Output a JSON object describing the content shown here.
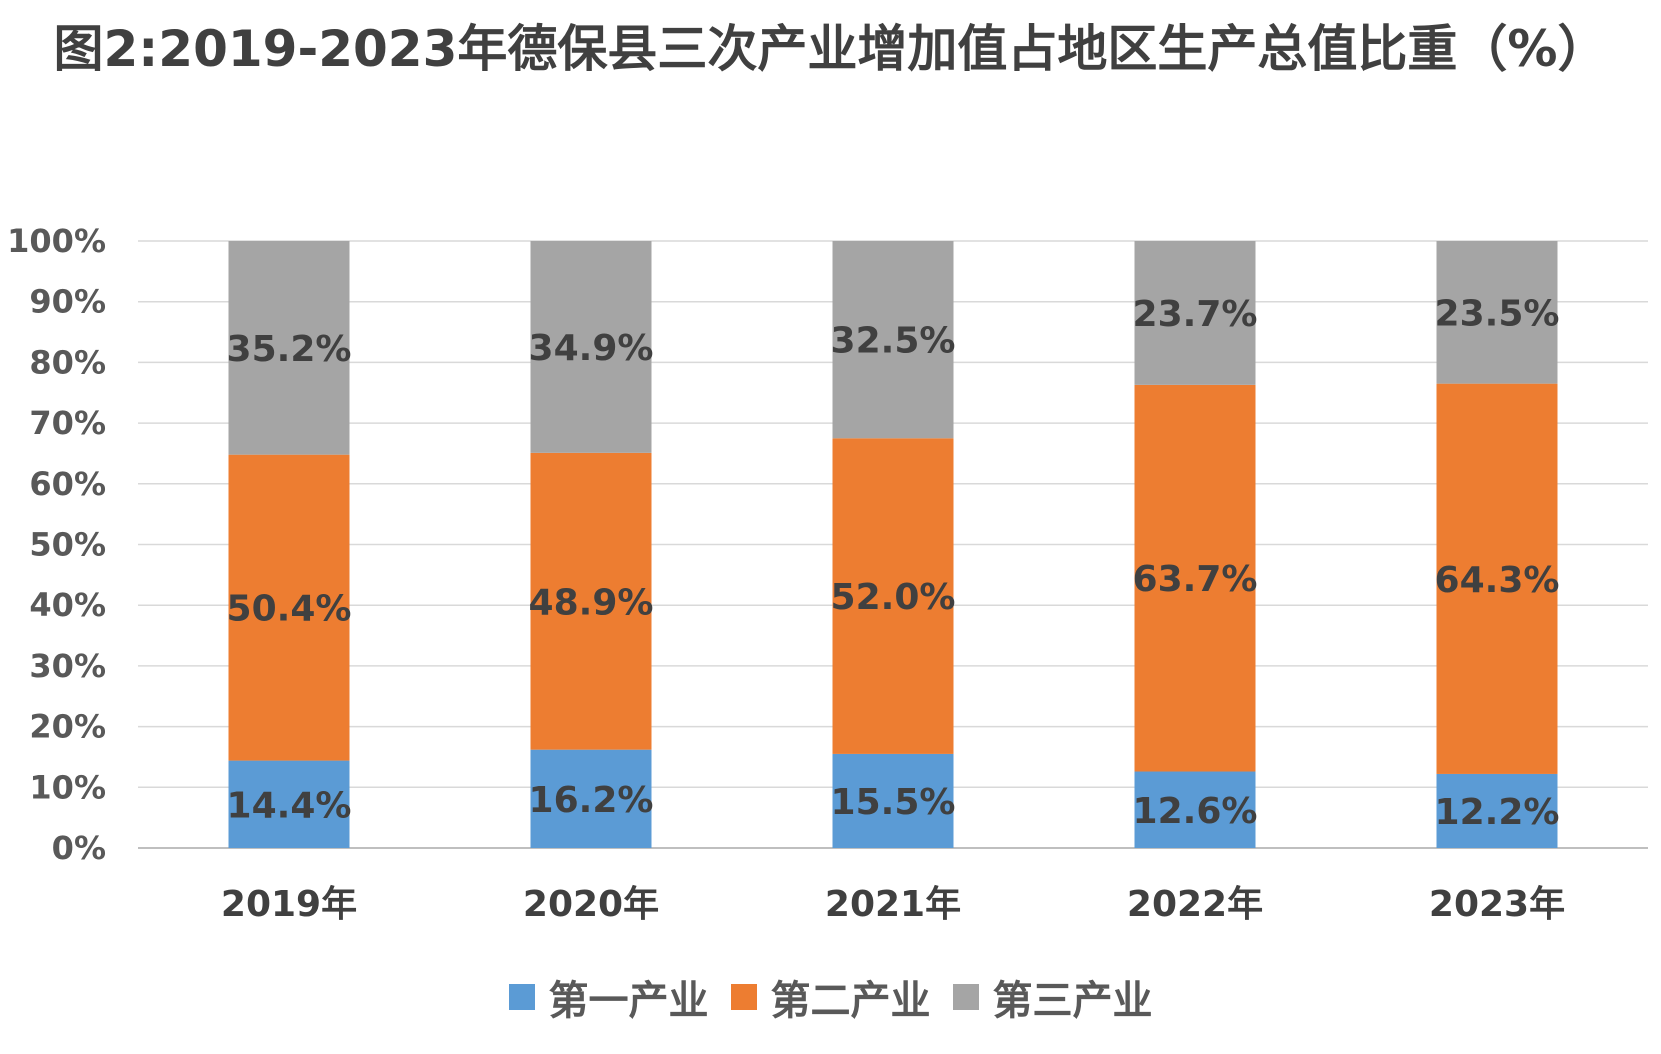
{
  "chart_data": {
    "type": "bar",
    "stacked": true,
    "percent_stacked": true,
    "title": "图2:2019-2023年德保县三次产业增加值占地区生产总值比重（%）",
    "categories": [
      "2019年",
      "2020年",
      "2021年",
      "2022年",
      "2023年"
    ],
    "ylim": [
      0,
      100
    ],
    "yticks": [
      "0%",
      "10%",
      "20%",
      "30%",
      "40%",
      "50%",
      "60%",
      "70%",
      "80%",
      "90%",
      "100%"
    ],
    "grid": true,
    "legend_position": "bottom",
    "series": [
      {
        "name": "第一产业",
        "values": [
          14.4,
          16.2,
          15.5,
          12.6,
          12.2
        ],
        "labels": [
          "14.4%",
          "16.2%",
          "15.5%",
          "12.6%",
          "12.2%"
        ],
        "color": "#5B9BD5"
      },
      {
        "name": "第二产业",
        "values": [
          50.4,
          48.9,
          52.0,
          63.7,
          64.3
        ],
        "labels": [
          "50.4%",
          "48.9%",
          "52.0%",
          "63.7%",
          "64.3%"
        ],
        "color": "#ED7D31"
      },
      {
        "name": "第三产业",
        "values": [
          35.2,
          34.9,
          32.5,
          23.7,
          23.5
        ],
        "labels": [
          "35.2%",
          "34.9%",
          "32.5%",
          "23.7%",
          "23.5%"
        ],
        "color": "#A5A5A5"
      }
    ]
  }
}
